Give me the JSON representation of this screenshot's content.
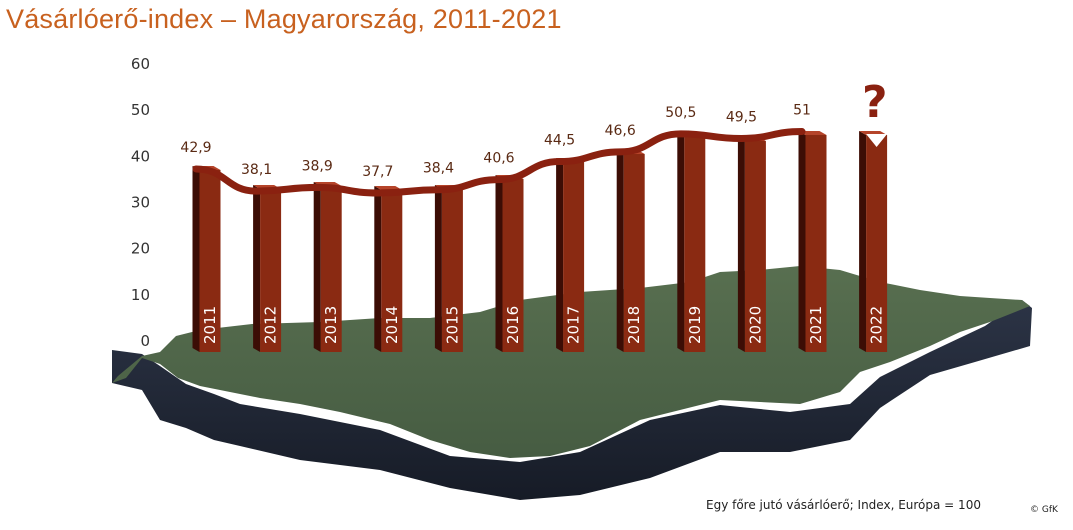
{
  "title": "Vásárlóerő-index – Magyarország, 2011-2021",
  "footnote": "Egy főre jutó vásárlóerő; Index, Európa = 100",
  "credit": "© GfK",
  "colors": {
    "title": "#c8611f",
    "bar_front": "#8a2a12",
    "bar_side": "#3c0d05",
    "bar_top": "#b5442a",
    "line": "#8a2110",
    "map_top": "#4f6548",
    "map_side": "#232a3a"
  },
  "chart_data": {
    "type": "bar",
    "title": "Vásárlóerő-index – Magyarország, 2011-2021",
    "categories": [
      "2011",
      "2012",
      "2013",
      "2014",
      "2015",
      "2016",
      "2017",
      "2018",
      "2019",
      "2020",
      "2021",
      "2022"
    ],
    "values": [
      42.9,
      38.1,
      38.9,
      37.7,
      38.4,
      40.6,
      44.5,
      46.6,
      50.5,
      49.5,
      51,
      null
    ],
    "value_labels": [
      "42,9",
      "38,1",
      "38,9",
      "37,7",
      "38,4",
      "40,6",
      "44,5",
      "46,6",
      "50,5",
      "49,5",
      "51",
      ""
    ],
    "unknown_marker": "?",
    "ylim": [
      0,
      60
    ],
    "yticks": [
      0,
      10,
      20,
      30,
      40,
      50,
      60
    ],
    "trend_line": true,
    "legend": "none",
    "grid": false
  }
}
